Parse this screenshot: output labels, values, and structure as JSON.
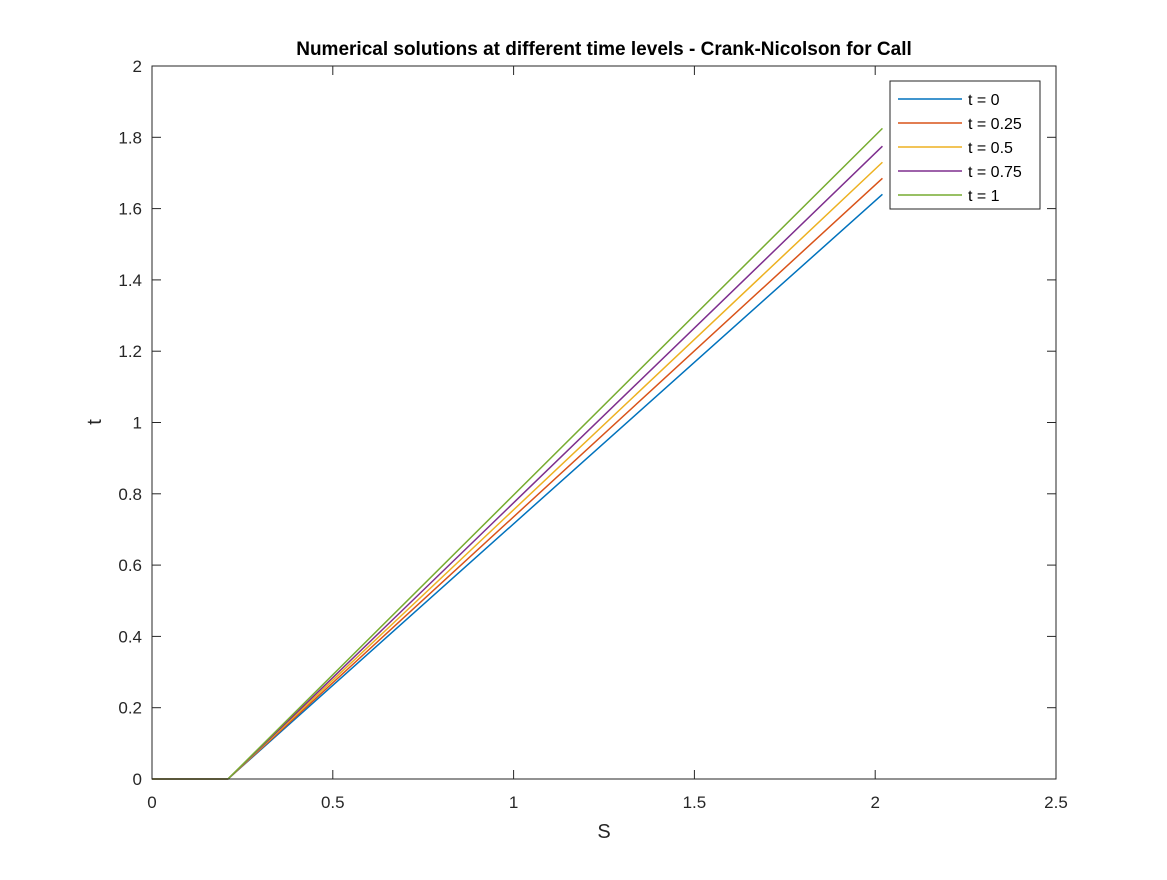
{
  "chart_data": {
    "type": "line",
    "title": "Numerical solutions at different time levels - Crank-Nicolson for Call",
    "xlabel": "S",
    "ylabel": "t",
    "xlim": [
      0,
      2.5
    ],
    "ylim": [
      0,
      2
    ],
    "xticks": [
      0,
      0.5,
      1,
      1.5,
      2,
      2.5
    ],
    "xtick_labels": [
      "0",
      "0.5",
      "1",
      "1.5",
      "2",
      "2.5"
    ],
    "yticks": [
      0,
      0.2,
      0.4,
      0.6,
      0.8,
      1,
      1.2,
      1.4,
      1.6,
      1.8,
      2
    ],
    "ytick_labels": [
      "0",
      "0.2",
      "0.4",
      "0.6",
      "0.8",
      "1",
      "1.2",
      "1.4",
      "1.6",
      "1.8",
      "2"
    ],
    "grid": false,
    "legend_position": "top-right",
    "series": [
      {
        "name": "t = 0",
        "color": "#0072BD",
        "x": [
          0,
          0.2,
          0.21,
          2.02
        ],
        "y": [
          0,
          0,
          0,
          1.64
        ]
      },
      {
        "name": "t = 0.25",
        "color": "#D95319",
        "x": [
          0,
          0.2,
          0.21,
          2.02
        ],
        "y": [
          0,
          0,
          0,
          1.685
        ]
      },
      {
        "name": "t = 0.5",
        "color": "#EDB120",
        "x": [
          0,
          0.2,
          0.21,
          2.02
        ],
        "y": [
          0,
          0,
          0,
          1.73
        ]
      },
      {
        "name": "t = 0.75",
        "color": "#7E2F8E",
        "x": [
          0,
          0.2,
          0.21,
          2.02
        ],
        "y": [
          0,
          0,
          0,
          1.775
        ]
      },
      {
        "name": "t = 1",
        "color": "#77AC30",
        "x": [
          0,
          0.2,
          0.21,
          2.02
        ],
        "y": [
          0,
          0,
          0,
          1.825
        ]
      }
    ]
  }
}
